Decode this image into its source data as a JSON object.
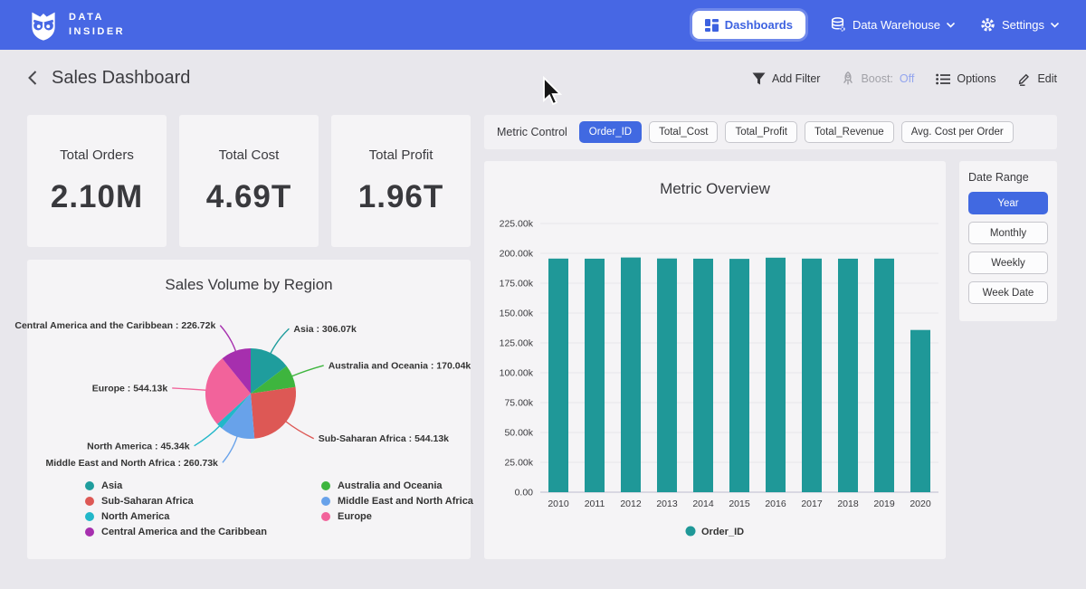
{
  "colors": {
    "navbar": "#4767e4",
    "accent": "#4169e1",
    "boost_off": "#93a5ee"
  },
  "navbar": {
    "logo_line1": "DATA",
    "logo_line2": "INSIDER",
    "dashboards_label": "Dashboards",
    "data_warehouse_label": "Data Warehouse",
    "settings_label": "Settings"
  },
  "header": {
    "title": "Sales Dashboard",
    "add_filter_label": "Add Filter",
    "boost_label": "Boost:",
    "boost_state": "Off",
    "options_label": "Options",
    "edit_label": "Edit"
  },
  "kpis": [
    {
      "label": "Total Orders",
      "value": "2.10M"
    },
    {
      "label": "Total Cost",
      "value": "4.69T"
    },
    {
      "label": "Total Profit",
      "value": "1.96T"
    }
  ],
  "metric_control": {
    "label": "Metric Control",
    "options": [
      {
        "label": "Order_ID",
        "selected": true
      },
      {
        "label": "Total_Cost",
        "selected": false
      },
      {
        "label": "Total_Profit",
        "selected": false
      },
      {
        "label": "Total_Revenue",
        "selected": false
      },
      {
        "label": "Avg. Cost per Order",
        "selected": false
      }
    ]
  },
  "date_range": {
    "label": "Date Range",
    "options": [
      {
        "label": "Year",
        "selected": true
      },
      {
        "label": "Monthly",
        "selected": false
      },
      {
        "label": "Weekly",
        "selected": false
      },
      {
        "label": "Week Date",
        "selected": false
      }
    ]
  },
  "chart_data": [
    {
      "type": "pie",
      "title": "Sales Volume by Region",
      "unit": "k",
      "slices": [
        {
          "label": "Asia",
          "value": 306.07,
          "display": "Asia : 306.07k",
          "color": "#1f9d9d"
        },
        {
          "label": "Australia and Oceania",
          "value": 170.04,
          "display": "Australia and Oceania : 170.04k",
          "color": "#3eb53e"
        },
        {
          "label": "Sub-Saharan Africa",
          "value": 544.13,
          "display": "Sub-Saharan Africa : 544.13k",
          "color": "#dd5855"
        },
        {
          "label": "Middle East and North Africa",
          "value": 260.73,
          "display": "Middle East and North Africa : 260.73k",
          "color": "#68a2ea"
        },
        {
          "label": "North America",
          "value": 45.34,
          "display": "North America : 45.34k",
          "color": "#22b7c9"
        },
        {
          "label": "Europe",
          "value": 544.13,
          "display": "Europe : 544.13k",
          "color": "#f2639b"
        },
        {
          "label": "Central America and the Caribbean",
          "value": 226.72,
          "display": "Central America and the Caribbean : 226.72k",
          "color": "#a62fae"
        }
      ],
      "legend_columns": [
        [
          "Asia",
          "Sub-Saharan Africa",
          "North America",
          "Central America and the Caribbean"
        ],
        [
          "Australia and Oceania",
          "Middle East and North Africa",
          "Europe"
        ]
      ]
    },
    {
      "type": "bar",
      "title": "Metric Overview",
      "categories": [
        "2010",
        "2011",
        "2012",
        "2013",
        "2014",
        "2015",
        "2016",
        "2017",
        "2018",
        "2019",
        "2020"
      ],
      "series": [
        {
          "name": "Order_ID",
          "color": "#1f9898",
          "values": [
            195.6,
            195.5,
            196.5,
            195.7,
            195.5,
            195.4,
            196.4,
            195.6,
            195.5,
            195.6,
            135.8
          ]
        }
      ],
      "unit": "k",
      "ylim": [
        0,
        225
      ],
      "yticks": [
        0,
        25,
        50,
        75,
        100,
        125,
        150,
        175,
        200,
        225
      ],
      "ytick_labels": [
        "0.00",
        "25.00k",
        "50.00k",
        "75.00k",
        "100.00k",
        "125.00k",
        "150.00k",
        "175.00k",
        "200.00k",
        "225.00k"
      ],
      "grid": true,
      "legend_position": "bottom"
    }
  ]
}
